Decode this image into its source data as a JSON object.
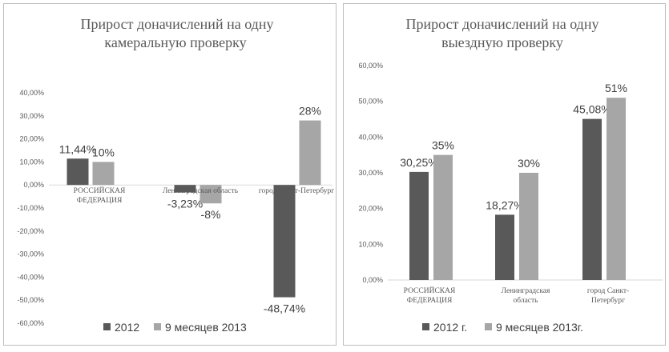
{
  "colors": {
    "series_dark": "#595959",
    "series_light": "#a6a6a6",
    "axis": "#d9d9d9"
  },
  "chart_data": [
    {
      "type": "bar",
      "title_lines": [
        "Прирост доначислений на одну",
        "камеральную  проверку"
      ],
      "categories": [
        "РОССИЙСКАЯ ФЕДЕРАЦИЯ",
        "Ленинградская область",
        "город Санкт-Петербург"
      ],
      "category_lines": [
        [
          "РОССИЙСКАЯ",
          "ФЕДЕРАЦИЯ"
        ],
        [
          "Ленинградская область"
        ],
        [
          "город Санкт-Петербург"
        ]
      ],
      "series": [
        {
          "name": "2012",
          "values": [
            11.44,
            -3.23,
            -48.74
          ],
          "labels": [
            "11,44%",
            "-3,23%",
            "-48,74%"
          ]
        },
        {
          "name": "9 месяцев 2013",
          "values": [
            10,
            -8,
            28
          ],
          "labels": [
            "10%",
            "-8%",
            "28%"
          ]
        }
      ],
      "ylim": [
        -60,
        40
      ],
      "yticks": [
        40,
        30,
        20,
        10,
        0,
        -10,
        -20,
        -30,
        -40,
        -50,
        -60
      ],
      "ytick_labels": [
        "40,00%",
        "30,00%",
        "20,00%",
        "10,00%",
        "0,00%",
        "-10,00%",
        "-20,00%",
        "-30,00%",
        "-40,00%",
        "-50,00%",
        "-60,00%"
      ],
      "grid": false,
      "legend": "bottom"
    },
    {
      "type": "bar",
      "title_lines": [
        "Прирост доначислений на одну",
        "выездную проверку"
      ],
      "categories": [
        "РОССИЙСКАЯ ФЕДЕРАЦИЯ",
        "Ленинградская область",
        "город Санкт-Петербург"
      ],
      "category_lines": [
        [
          "РОССИЙСКАЯ",
          "ФЕДЕРАЦИЯ"
        ],
        [
          "Ленинградская",
          "область"
        ],
        [
          "город Санкт-",
          "Петербург"
        ]
      ],
      "series": [
        {
          "name": "2012 г.",
          "values": [
            30.25,
            18.27,
            45.08
          ],
          "labels": [
            "30,25%",
            "18,27%",
            "45,08%"
          ]
        },
        {
          "name": "9 месяцев 2013г.",
          "values": [
            35,
            30,
            51
          ],
          "labels": [
            "35%",
            "30%",
            "51%"
          ]
        }
      ],
      "ylim": [
        0,
        60
      ],
      "yticks": [
        60,
        50,
        40,
        30,
        20,
        10,
        0
      ],
      "ytick_labels": [
        "60,00%",
        "50,00%",
        "40,00%",
        "30,00%",
        "20,00%",
        "10,00%",
        "0,00%"
      ],
      "grid": false,
      "legend": "bottom"
    }
  ]
}
